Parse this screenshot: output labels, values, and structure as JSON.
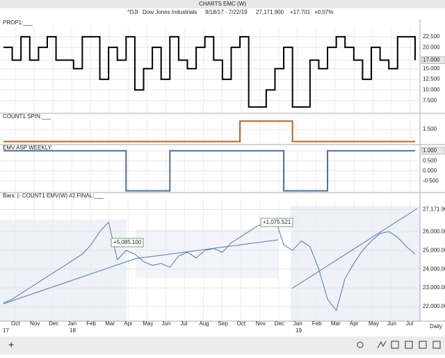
{
  "window_title": "CHARTS EMC (W)",
  "header": {
    "symbol": "^DJI",
    "name": "Dow Jones Industrials",
    "range": "9/18/17 - 7/22/19",
    "last": "27,171.900",
    "change": "+17.701",
    "pct": "+0.07%"
  },
  "panels": [
    {
      "label": "PROP1:___",
      "ylim": [
        5,
        24.6
      ],
      "color": "#000000",
      "yticks": [
        {
          "value": 22.5,
          "label": "22.500"
        },
        {
          "value": 20,
          "label": "20.000"
        },
        {
          "value": 17,
          "label": "17.000"
        },
        {
          "value": 15,
          "label": "15.000"
        },
        {
          "value": 12.5,
          "label": "12.500"
        },
        {
          "value": 10,
          "label": "10.000"
        },
        {
          "value": 7.5,
          "label": "7.500"
        }
      ],
      "values": [
        20,
        17,
        22.5,
        17,
        20,
        22.5,
        17,
        17,
        15,
        22.5,
        22.5,
        12.5,
        20,
        17,
        22.5,
        10,
        15,
        20,
        12.5,
        22.5,
        17,
        15,
        20,
        22.5,
        17,
        12.5,
        20,
        22.5,
        6,
        6,
        10,
        15,
        20,
        6,
        6,
        17,
        15,
        20,
        22.5,
        20,
        17,
        12.5,
        20,
        17,
        15,
        22.5,
        22.5,
        17
      ]
    },
    {
      "label": "COUNT1 SPIN:___",
      "ylim": [
        -0.2,
        3.2
      ],
      "color": "#b5651d",
      "yticks": [
        {
          "value": 1.5,
          "label": "1.500"
        }
      ],
      "values": [
        0,
        0,
        0,
        0,
        0,
        0,
        0,
        0,
        0,
        0,
        0,
        0,
        0,
        0,
        0,
        0,
        0,
        0,
        0,
        0,
        0,
        0,
        0,
        0,
        0,
        0,
        0,
        2.5,
        2.5,
        2.5,
        2.5,
        2.5,
        2.5,
        0,
        0,
        0,
        0,
        0,
        0,
        0,
        0,
        0,
        0,
        0,
        0,
        0,
        0,
        0
      ]
    },
    {
      "label": "EMV ASP WEEKLY:___",
      "ylim": [
        -1.05,
        1.17
      ],
      "color": "#4a6f9c",
      "yticks": [
        {
          "value": 1,
          "label": "1.000"
        },
        {
          "value": 0.5,
          "label": "0.500"
        },
        {
          "value": 0,
          "label": "0.000"
        },
        {
          "value": -0.5,
          "label": "-0.500"
        }
      ],
      "values": [
        1,
        1,
        1,
        1,
        1,
        1,
        1,
        1,
        1,
        1,
        1,
        1,
        1,
        1,
        -1,
        -1,
        -1,
        -1,
        -1,
        1,
        1,
        1,
        1,
        1,
        1,
        1,
        1,
        1,
        1,
        1,
        1,
        1,
        -1,
        -1,
        -1,
        -1,
        -1,
        1,
        1,
        1,
        1,
        1,
        1,
        1,
        1,
        1,
        1,
        1
      ]
    },
    {
      "label": "Bars: |-   COUNT1 EMV(W) #2 FINAL:___",
      "ylim": [
        21300,
        27600
      ],
      "color": "#4a78b0",
      "yticks": [
        {
          "value": 27171.9,
          "label": "27,171.900"
        },
        {
          "value": 26000,
          "label": "26,000.000"
        },
        {
          "value": 25000,
          "label": "25,000.000"
        },
        {
          "value": 24000,
          "label": "24,000.000"
        },
        {
          "value": 23000,
          "label": "23,000.000"
        },
        {
          "value": 22000,
          "label": "22,000.000"
        }
      ],
      "values": [
        22200,
        22400,
        22700,
        23000,
        23300,
        23600,
        23900,
        24200,
        24500,
        24800,
        25300,
        26000,
        26500,
        24500,
        25000,
        24800,
        24400,
        24200,
        24300,
        24100,
        24700,
        24900,
        24600,
        25000,
        25100,
        24900,
        25400,
        25700,
        26000,
        26300,
        26500,
        26700,
        25300,
        25000,
        25500,
        25200,
        24000,
        22400,
        21800,
        23500,
        24300,
        25000,
        25500,
        25900,
        26000,
        25700,
        25200,
        24800
      ],
      "annotations": [
        "+5,085.100",
        "+1,075.521"
      ]
    }
  ],
  "x_axis": {
    "months": [
      "Oct",
      "Nov",
      "Dec",
      "Jan",
      "Feb",
      "Mar",
      "Apr",
      "May",
      "Jun",
      "Jul",
      "Aug",
      "Sep",
      "Oct",
      "Nov",
      "Dec",
      "Jan",
      "Feb",
      "Mar",
      "Apr",
      "May",
      "Jun",
      "Jul"
    ],
    "years": [
      "17",
      "18",
      "19"
    ],
    "interval": "Daily"
  }
}
